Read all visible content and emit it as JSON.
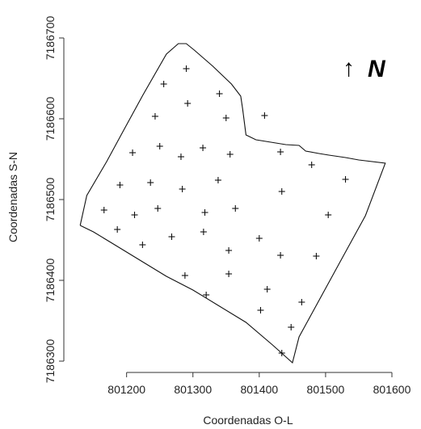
{
  "chart_data": {
    "type": "scatter",
    "xlabel": "Coordenadas O-L",
    "ylabel": "Coordenadas S-N",
    "xlim": [
      801120,
      801600
    ],
    "ylim": [
      7186298,
      7186700
    ],
    "x_ticks": [
      801200,
      801300,
      801400,
      801500,
      801600
    ],
    "y_ticks": [
      7186300,
      7186400,
      7186500,
      7186600,
      7186700
    ],
    "x_tick_labels": [
      "801200",
      "801300",
      "801400",
      "801500",
      "801600"
    ],
    "y_tick_labels": [
      "7186300",
      "7186400",
      "7186500",
      "7186600",
      "7186700"
    ],
    "north_arrow_glyph": "↑",
    "north_label": "N",
    "marker": "+",
    "boundary": [
      [
        801130,
        7186468
      ],
      [
        801140,
        7186505
      ],
      [
        801170,
        7186547
      ],
      [
        801195,
        7186585
      ],
      [
        801225,
        7186630
      ],
      [
        801260,
        7186680
      ],
      [
        801278,
        7186693
      ],
      [
        801290,
        7186693
      ],
      [
        801302,
        7186685
      ],
      [
        801330,
        7186665
      ],
      [
        801358,
        7186643
      ],
      [
        801372,
        7186628
      ],
      [
        801375,
        7186612
      ],
      [
        801380,
        7186580
      ],
      [
        801395,
        7186574
      ],
      [
        801440,
        7186568
      ],
      [
        801460,
        7186567
      ],
      [
        801470,
        7186560
      ],
      [
        801490,
        7186557
      ],
      [
        801505,
        7186555
      ],
      [
        801530,
        7186552
      ],
      [
        801550,
        7186549
      ],
      [
        801590,
        7186545
      ],
      [
        801560,
        7186480
      ],
      [
        801520,
        7186420
      ],
      [
        801480,
        7186360
      ],
      [
        801460,
        7186330
      ],
      [
        801450,
        7186298
      ],
      [
        801420,
        7186320
      ],
      [
        801380,
        7186348
      ],
      [
        801340,
        7186368
      ],
      [
        801300,
        7186388
      ],
      [
        801260,
        7186405
      ],
      [
        801220,
        7186425
      ],
      [
        801180,
        7186445
      ],
      [
        801150,
        7186460
      ],
      [
        801130,
        7186468
      ]
    ],
    "points": [
      {
        "x": 801290,
        "y": 7186662
      },
      {
        "x": 801256,
        "y": 7186643
      },
      {
        "x": 801340,
        "y": 7186631
      },
      {
        "x": 801292,
        "y": 7186619
      },
      {
        "x": 801243,
        "y": 7186603
      },
      {
        "x": 801350,
        "y": 7186601
      },
      {
        "x": 801408,
        "y": 7186604
      },
      {
        "x": 801250,
        "y": 7186566
      },
      {
        "x": 801315,
        "y": 7186564
      },
      {
        "x": 801209,
        "y": 7186558
      },
      {
        "x": 801282,
        "y": 7186553
      },
      {
        "x": 801356,
        "y": 7186556
      },
      {
        "x": 801432,
        "y": 7186559
      },
      {
        "x": 801479,
        "y": 7186543
      },
      {
        "x": 801190,
        "y": 7186518
      },
      {
        "x": 801236,
        "y": 7186521
      },
      {
        "x": 801338,
        "y": 7186524
      },
      {
        "x": 801284,
        "y": 7186513
      },
      {
        "x": 801530,
        "y": 7186525
      },
      {
        "x": 801434,
        "y": 7186510
      },
      {
        "x": 801166,
        "y": 7186487
      },
      {
        "x": 801247,
        "y": 7186489
      },
      {
        "x": 801212,
        "y": 7186481
      },
      {
        "x": 801318,
        "y": 7186484
      },
      {
        "x": 801364,
        "y": 7186489
      },
      {
        "x": 801504,
        "y": 7186481
      },
      {
        "x": 801186,
        "y": 7186463
      },
      {
        "x": 801268,
        "y": 7186454
      },
      {
        "x": 801316,
        "y": 7186460
      },
      {
        "x": 801400,
        "y": 7186452
      },
      {
        "x": 801224,
        "y": 7186444
      },
      {
        "x": 801354,
        "y": 7186437
      },
      {
        "x": 801432,
        "y": 7186431
      },
      {
        "x": 801486,
        "y": 7186430
      },
      {
        "x": 801288,
        "y": 7186406
      },
      {
        "x": 801354,
        "y": 7186408
      },
      {
        "x": 801412,
        "y": 7186389
      },
      {
        "x": 801320,
        "y": 7186382
      },
      {
        "x": 801464,
        "y": 7186373
      },
      {
        "x": 801402,
        "y": 7186363
      },
      {
        "x": 801448,
        "y": 7186342
      },
      {
        "x": 801434,
        "y": 7186310
      }
    ]
  }
}
